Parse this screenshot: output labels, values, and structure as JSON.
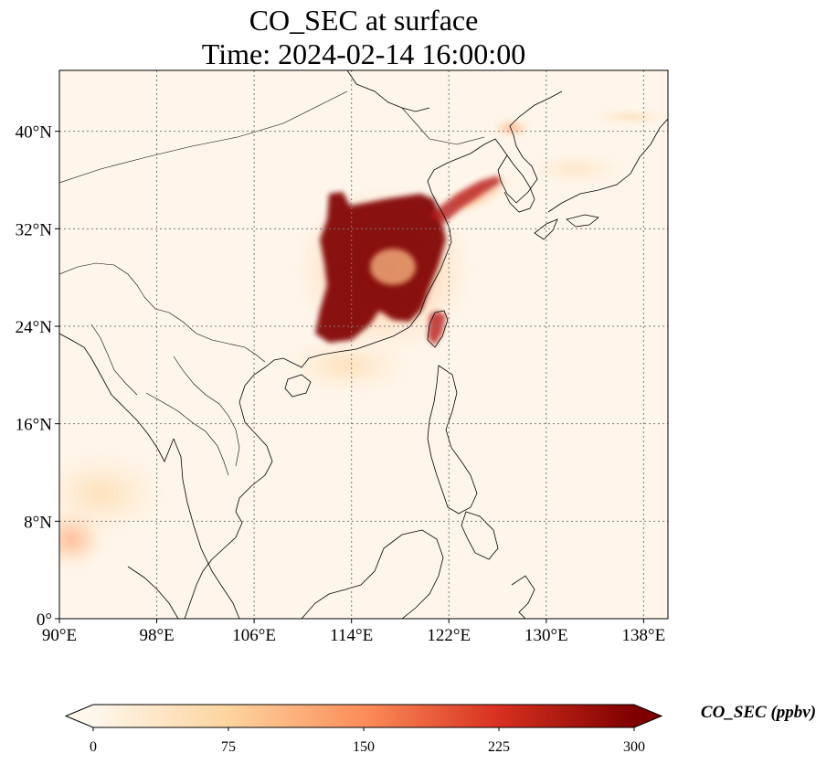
{
  "title": {
    "line1": "CO_SEC at surface",
    "line2": "Time: 2024-02-14 16:00:00"
  },
  "map": {
    "projection": "PlateCarree",
    "lon_range": [
      90,
      140
    ],
    "lat_range": [
      0,
      45
    ],
    "gridlines": true,
    "lon_ticks": [
      {
        "value": 90,
        "label": "90°E"
      },
      {
        "value": 98,
        "label": "98°E"
      },
      {
        "value": 106,
        "label": "106°E"
      },
      {
        "value": 114,
        "label": "114°E"
      },
      {
        "value": 122,
        "label": "122°E"
      },
      {
        "value": 130,
        "label": "130°E"
      },
      {
        "value": 138,
        "label": "138°E"
      }
    ],
    "lat_ticks": [
      {
        "value": 0,
        "label": "0°"
      },
      {
        "value": 8,
        "label": "8°N"
      },
      {
        "value": 16,
        "label": "16°N"
      },
      {
        "value": 24,
        "label": "24°N"
      },
      {
        "value": 32,
        "label": "32°N"
      },
      {
        "value": 40,
        "label": "40°N"
      }
    ],
    "colors": {
      "background": "#fff5ea",
      "gridline": "#7a7a7a",
      "coastline": "#000000"
    }
  },
  "colorbar": {
    "label": "CO_SEC (ppbv)",
    "min": 0,
    "max": 300,
    "extend": "both",
    "ticks": [
      {
        "value": 0,
        "label": "0"
      },
      {
        "value": 75,
        "label": "75"
      },
      {
        "value": 150,
        "label": "150"
      },
      {
        "value": 225,
        "label": "225"
      },
      {
        "value": 300,
        "label": "300"
      }
    ],
    "colormap": "OrRd",
    "color_stops": [
      "#fff7ec",
      "#fdd49e",
      "#fc8d59",
      "#d7301f",
      "#7f0000"
    ]
  }
}
